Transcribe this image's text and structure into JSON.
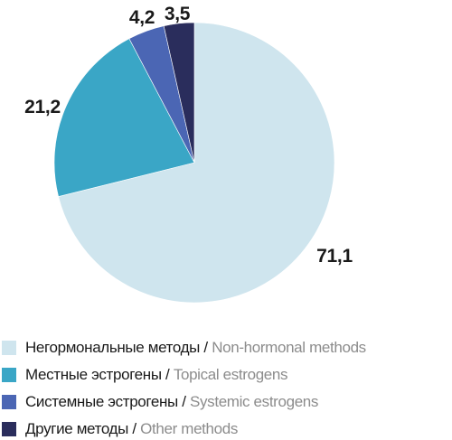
{
  "chart_data": {
    "type": "pie",
    "series": [
      {
        "name_ru": "Негормональные методы",
        "name_en": "Non-hormonal methods",
        "value": 71.1,
        "label": "71,1",
        "color": "#cfe5ee"
      },
      {
        "name_ru": "Местные эстрогены",
        "name_en": "Topical estrogens",
        "value": 21.2,
        "label": "21,2",
        "color": "#3aa6c6"
      },
      {
        "name_ru": "Системные эстрогены",
        "name_en": "Systemic estrogens",
        "value": 4.2,
        "label": "4,2",
        "color": "#4b66b4"
      },
      {
        "name_ru": "Другие методы",
        "name_en": "Other methods",
        "value": 3.5,
        "label": "3,5",
        "color": "#2a2d5c"
      }
    ],
    "legend_separator": " / ",
    "legend_position": "bottom-left",
    "start": "12 o'clock",
    "direction": "clockwise"
  }
}
